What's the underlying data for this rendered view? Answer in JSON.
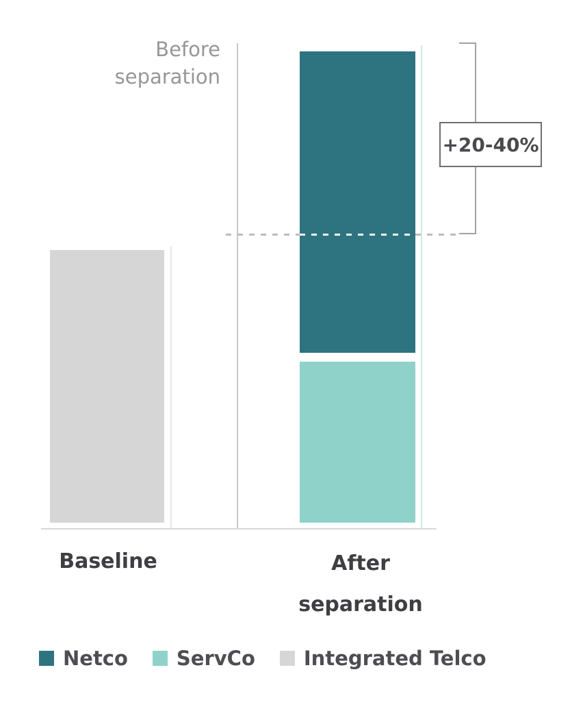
{
  "chart": {
    "reference_label": "Before\nseparation",
    "annotation": "+20-40%",
    "x_axis": {
      "baseline_label": "Baseline",
      "after_label": "After\nseparation"
    },
    "legend": [
      {
        "label": "Netco",
        "color": "#2e7380"
      },
      {
        "label": "ServCo",
        "color": "#8fd2ca"
      },
      {
        "label": "Integrated Telco",
        "color": "#d6d6d6"
      }
    ]
  },
  "chart_data": {
    "type": "bar",
    "stacked": true,
    "categories": [
      "Baseline",
      "After separation"
    ],
    "series": [
      {
        "name": "Integrated Telco",
        "color": "#d6d6d6",
        "values": [
          100,
          0
        ]
      },
      {
        "name": "Netco",
        "color": "#2e7380",
        "values": [
          0,
          111
        ]
      },
      {
        "name": "ServCo",
        "color": "#8fd2ca",
        "values": [
          0,
          59
        ]
      }
    ],
    "value_scale": "relative units, Baseline bar = 100 (no numeric axis shown; heights estimated from pixels)",
    "reference_line": {
      "label": "Before separation",
      "style": "dashed",
      "level": 106
    },
    "annotations": [
      {
        "text": "+20-40%",
        "target": "bracket from dashed before-separation level to top of After separation stack"
      }
    ],
    "legend_position": "bottom",
    "axes": {
      "y_axis_visible": false,
      "x_axis_line": true,
      "grid": false
    }
  }
}
